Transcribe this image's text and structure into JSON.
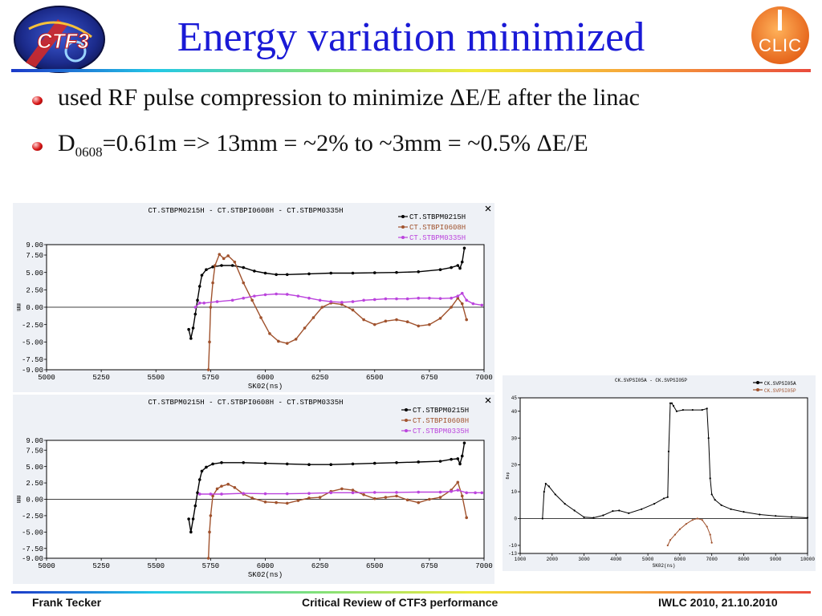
{
  "slide": {
    "title": "Energy variation minimized",
    "bullets": [
      {
        "text": "used RF pulse compression to minimize ΔE/E after the linac"
      },
      {
        "pre": "D",
        "sub": "0608",
        "post": "=0.61m => 13mm = ~2%  to  ~3mm = ~0.5% ΔE/E"
      }
    ],
    "logo_left": {
      "text": "CTF3",
      "icon": "ctf3-logo-icon"
    },
    "logo_right": {
      "text": "CLIC",
      "icon": "clic-logo-icon"
    }
  },
  "footer": {
    "left": "Frank Tecker",
    "center": "Critical Review of CTF3 performance",
    "right": "IWLC 2010, 21.10.2010"
  },
  "colors": {
    "title": "#1a1ad6",
    "series_black": "#000000",
    "series_brown": "#a0522d",
    "series_violet": "#bb44dd"
  },
  "chart_data": [
    {
      "type": "line",
      "title": "CT.STBPM0215H   -   CT.STBPI0608H   -   CT.STBPM0335H",
      "xlabel": "SK02(ns)",
      "ylabel": "mm",
      "xlim": [
        5000,
        7000
      ],
      "ylim": [
        -9,
        9
      ],
      "xticks": [
        5000,
        5250,
        5500,
        5750,
        6000,
        6250,
        6500,
        6750,
        7000
      ],
      "yticks": [
        9.0,
        7.5,
        5.0,
        2.5,
        0.0,
        -2.5,
        -5.0,
        -7.5,
        -9.0
      ],
      "ytick_labels": [
        "9.00",
        "7.50",
        "5.00",
        "2.50",
        "0.00",
        "-2.50",
        "-5.00",
        "-7.50",
        "-9.00"
      ],
      "legend_position": "top-right",
      "series": [
        {
          "name": "CT.STBPM0215H",
          "color": "#000000",
          "points": [
            [
              5650,
              -3.2
            ],
            [
              5660,
              -4.5
            ],
            [
              5670,
              -3.0
            ],
            [
              5680,
              -1.0
            ],
            [
              5690,
              1.0
            ],
            [
              5700,
              3.0
            ],
            [
              5710,
              4.6
            ],
            [
              5730,
              5.4
            ],
            [
              5760,
              5.8
            ],
            [
              5800,
              6.0
            ],
            [
              5850,
              6.0
            ],
            [
              5900,
              5.7
            ],
            [
              5950,
              5.2
            ],
            [
              6000,
              4.9
            ],
            [
              6050,
              4.7
            ],
            [
              6100,
              4.7
            ],
            [
              6200,
              4.8
            ],
            [
              6300,
              4.9
            ],
            [
              6400,
              4.9
            ],
            [
              6500,
              4.95
            ],
            [
              6600,
              5.0
            ],
            [
              6700,
              5.1
            ],
            [
              6800,
              5.4
            ],
            [
              6850,
              5.7
            ],
            [
              6880,
              6.0
            ],
            [
              6890,
              5.6
            ],
            [
              6900,
              6.5
            ],
            [
              6910,
              8.5
            ]
          ]
        },
        {
          "name": "CT.STBPI0608H",
          "color": "#a0522d",
          "points": [
            [
              5740,
              -9.0
            ],
            [
              5745,
              -5.0
            ],
            [
              5750,
              0.0
            ],
            [
              5760,
              3.5
            ],
            [
              5770,
              6.0
            ],
            [
              5790,
              7.6
            ],
            [
              5810,
              7.0
            ],
            [
              5830,
              7.4
            ],
            [
              5860,
              6.5
            ],
            [
              5900,
              3.5
            ],
            [
              5940,
              1.0
            ],
            [
              5980,
              -1.5
            ],
            [
              6020,
              -3.8
            ],
            [
              6060,
              -4.9
            ],
            [
              6100,
              -5.2
            ],
            [
              6140,
              -4.6
            ],
            [
              6180,
              -3.0
            ],
            [
              6220,
              -1.5
            ],
            [
              6260,
              0.0
            ],
            [
              6300,
              0.6
            ],
            [
              6350,
              0.4
            ],
            [
              6400,
              -0.4
            ],
            [
              6450,
              -1.8
            ],
            [
              6500,
              -2.5
            ],
            [
              6550,
              -2.0
            ],
            [
              6600,
              -1.8
            ],
            [
              6650,
              -2.1
            ],
            [
              6700,
              -2.7
            ],
            [
              6750,
              -2.5
            ],
            [
              6800,
              -1.6
            ],
            [
              6850,
              0.0
            ],
            [
              6880,
              1.3
            ],
            [
              6900,
              0.5
            ],
            [
              6920,
              -1.8
            ]
          ]
        },
        {
          "name": "CT.STBPM0335H",
          "color": "#bb44dd",
          "points": [
            [
              5680,
              0.0
            ],
            [
              5700,
              0.6
            ],
            [
              5720,
              0.6
            ],
            [
              5780,
              0.8
            ],
            [
              5850,
              1.0
            ],
            [
              5900,
              1.3
            ],
            [
              5950,
              1.6
            ],
            [
              6000,
              1.8
            ],
            [
              6050,
              1.9
            ],
            [
              6100,
              1.85
            ],
            [
              6150,
              1.6
            ],
            [
              6200,
              1.3
            ],
            [
              6250,
              1.0
            ],
            [
              6300,
              0.8
            ],
            [
              6350,
              0.7
            ],
            [
              6400,
              0.8
            ],
            [
              6450,
              1.0
            ],
            [
              6500,
              1.1
            ],
            [
              6550,
              1.2
            ],
            [
              6600,
              1.2
            ],
            [
              6650,
              1.2
            ],
            [
              6700,
              1.3
            ],
            [
              6750,
              1.3
            ],
            [
              6800,
              1.25
            ],
            [
              6850,
              1.3
            ],
            [
              6880,
              1.6
            ],
            [
              6900,
              2.0
            ],
            [
              6920,
              1.0
            ],
            [
              6950,
              0.5
            ],
            [
              6990,
              0.3
            ]
          ]
        }
      ]
    },
    {
      "type": "line",
      "title": "CT.STBPM0215H   -   CT.STBPI0608H   -   CT.STBPM0335H",
      "xlabel": "SK02(ns)",
      "ylabel": "mm",
      "xlim": [
        5000,
        7000
      ],
      "ylim": [
        -9,
        9
      ],
      "xticks": [
        5000,
        5250,
        5500,
        5750,
        6000,
        6250,
        6500,
        6750,
        7000
      ],
      "yticks": [
        9.0,
        7.5,
        5.0,
        2.5,
        0.0,
        -2.5,
        -5.0,
        -7.5,
        -9.0
      ],
      "ytick_labels": [
        "9.00",
        "7.50",
        "5.00",
        "2.50",
        "0.00",
        "-2.50",
        "-5.00",
        "-7.50",
        "-9.00"
      ],
      "legend_position": "top-right",
      "series": [
        {
          "name": "CT.STBPM0215H",
          "color": "#000000",
          "points": [
            [
              5650,
              -3.0
            ],
            [
              5660,
              -5.0
            ],
            [
              5670,
              -3.0
            ],
            [
              5680,
              -1.0
            ],
            [
              5690,
              1.0
            ],
            [
              5700,
              3.0
            ],
            [
              5710,
              4.3
            ],
            [
              5730,
              4.9
            ],
            [
              5760,
              5.4
            ],
            [
              5800,
              5.6
            ],
            [
              5900,
              5.6
            ],
            [
              6000,
              5.5
            ],
            [
              6100,
              5.4
            ],
            [
              6200,
              5.3
            ],
            [
              6300,
              5.3
            ],
            [
              6400,
              5.4
            ],
            [
              6500,
              5.5
            ],
            [
              6600,
              5.6
            ],
            [
              6700,
              5.7
            ],
            [
              6800,
              5.8
            ],
            [
              6850,
              6.1
            ],
            [
              6880,
              6.2
            ],
            [
              6890,
              5.4
            ],
            [
              6900,
              6.6
            ],
            [
              6910,
              8.6
            ]
          ]
        },
        {
          "name": "CT.STBPI0608H",
          "color": "#a0522d",
          "points": [
            [
              5740,
              -9.0
            ],
            [
              5745,
              -5.0
            ],
            [
              5750,
              -2.5
            ],
            [
              5760,
              0.5
            ],
            [
              5780,
              1.6
            ],
            [
              5800,
              2.0
            ],
            [
              5830,
              2.3
            ],
            [
              5860,
              1.8
            ],
            [
              5900,
              0.8
            ],
            [
              5940,
              0.2
            ],
            [
              6000,
              -0.4
            ],
            [
              6050,
              -0.5
            ],
            [
              6100,
              -0.6
            ],
            [
              6150,
              -0.2
            ],
            [
              6200,
              0.2
            ],
            [
              6250,
              0.3
            ],
            [
              6300,
              1.2
            ],
            [
              6350,
              1.6
            ],
            [
              6400,
              1.4
            ],
            [
              6450,
              0.7
            ],
            [
              6500,
              0.1
            ],
            [
              6550,
              0.3
            ],
            [
              6600,
              0.5
            ],
            [
              6650,
              -0.1
            ],
            [
              6700,
              -0.5
            ],
            [
              6750,
              0.0
            ],
            [
              6800,
              0.3
            ],
            [
              6850,
              1.4
            ],
            [
              6880,
              2.6
            ],
            [
              6900,
              0.5
            ],
            [
              6920,
              -2.8
            ]
          ]
        },
        {
          "name": "CT.STBPM0335H",
          "color": "#bb44dd",
          "points": [
            [
              5700,
              0.8
            ],
            [
              5750,
              0.8
            ],
            [
              5800,
              0.8
            ],
            [
              5900,
              0.9
            ],
            [
              6000,
              0.85
            ],
            [
              6100,
              0.85
            ],
            [
              6200,
              0.9
            ],
            [
              6300,
              1.0
            ],
            [
              6400,
              1.0
            ],
            [
              6500,
              1.05
            ],
            [
              6600,
              1.05
            ],
            [
              6700,
              1.1
            ],
            [
              6800,
              1.1
            ],
            [
              6850,
              1.2
            ],
            [
              6880,
              1.4
            ],
            [
              6920,
              1.0
            ],
            [
              6960,
              1.0
            ],
            [
              6990,
              1.0
            ]
          ]
        }
      ]
    },
    {
      "type": "line",
      "title": "CK.SVPSI05A  -  CK.SVPSI05P",
      "xlabel": "SK02(ns)",
      "ylabel": "deg",
      "xlim": [
        1000,
        10000
      ],
      "ylim": [
        -13,
        45
      ],
      "xticks": [
        1000,
        2000,
        3000,
        4000,
        5000,
        6000,
        7000,
        8000,
        9000,
        10000
      ],
      "yticks": [
        45,
        40,
        30,
        20,
        10,
        0,
        -10,
        -13
      ],
      "ytick_labels": [
        "45",
        "40",
        "30",
        "20",
        "10",
        "0",
        "-10",
        "-13"
      ],
      "legend_position": "top-right",
      "series": [
        {
          "name": "CK.SVPSI05A",
          "color": "#000000",
          "points": [
            [
              1700,
              0
            ],
            [
              1750,
              10
            ],
            [
              1800,
              13
            ],
            [
              1900,
              12
            ],
            [
              2100,
              9
            ],
            [
              2400,
              5.5
            ],
            [
              2700,
              3
            ],
            [
              3000,
              0.5
            ],
            [
              3300,
              0.3
            ],
            [
              3600,
              1.2
            ],
            [
              3900,
              2.8
            ],
            [
              4100,
              3
            ],
            [
              4400,
              2
            ],
            [
              4800,
              3.5
            ],
            [
              5200,
              5.5
            ],
            [
              5500,
              7.5
            ],
            [
              5620,
              8
            ],
            [
              5650,
              25
            ],
            [
              5700,
              43
            ],
            [
              5750,
              43
            ],
            [
              5800,
              42
            ],
            [
              5900,
              40
            ],
            [
              6100,
              40.5
            ],
            [
              6400,
              40.5
            ],
            [
              6700,
              40.5
            ],
            [
              6850,
              41
            ],
            [
              6900,
              30
            ],
            [
              6950,
              15
            ],
            [
              7000,
              9
            ],
            [
              7100,
              7
            ],
            [
              7300,
              5
            ],
            [
              7600,
              3.5
            ],
            [
              8000,
              2.5
            ],
            [
              8500,
              1.5
            ],
            [
              9000,
              1
            ],
            [
              9500,
              0.6
            ],
            [
              10000,
              0.3
            ]
          ]
        },
        {
          "name": "CK.SVPSI05P",
          "color": "#a0522d",
          "points": [
            [
              5620,
              -10
            ],
            [
              5700,
              -8
            ],
            [
              5850,
              -6
            ],
            [
              6000,
              -4
            ],
            [
              6200,
              -2
            ],
            [
              6400,
              -0.5
            ],
            [
              6550,
              0
            ],
            [
              6700,
              -0.5
            ],
            [
              6850,
              -3
            ],
            [
              6950,
              -6
            ],
            [
              7000,
              -9
            ]
          ]
        }
      ]
    }
  ]
}
